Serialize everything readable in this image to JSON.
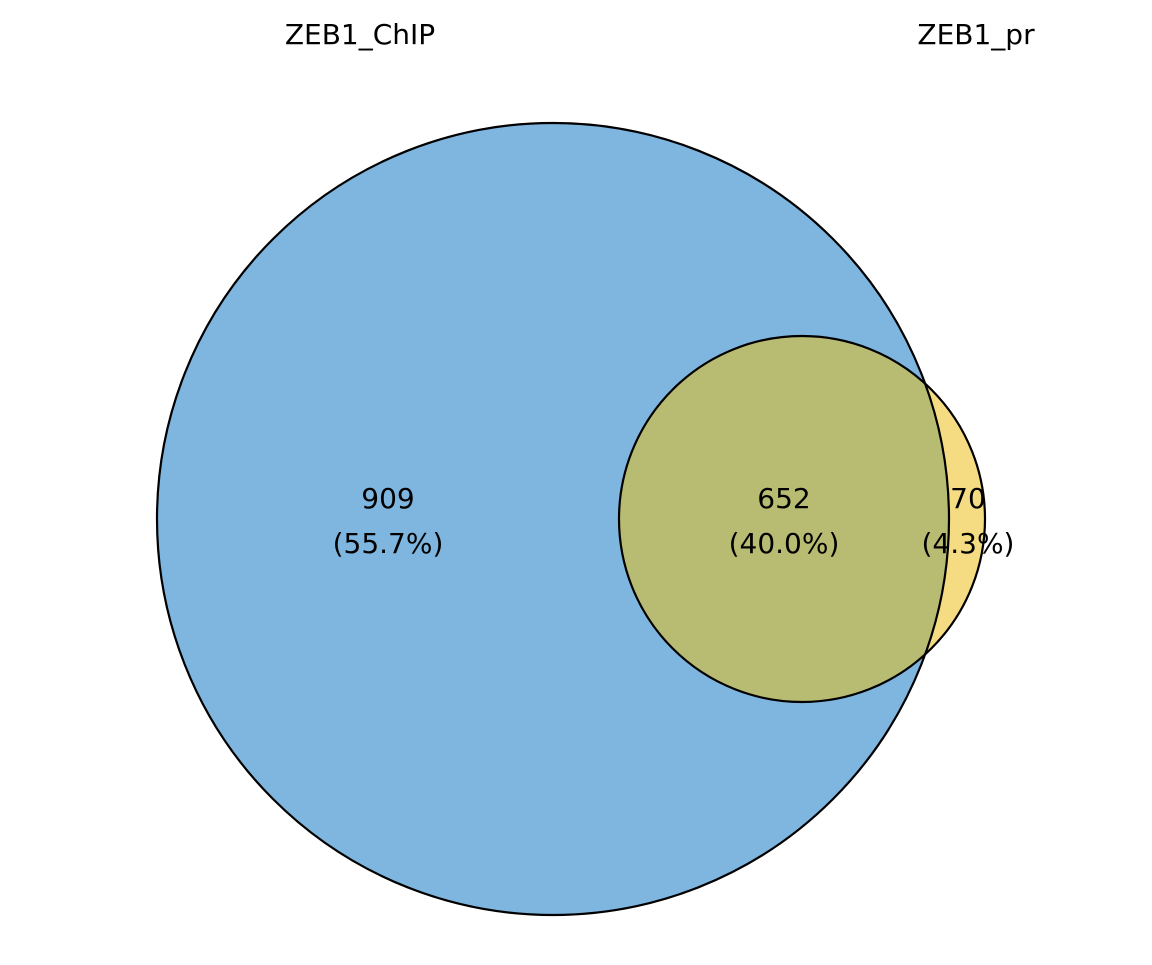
{
  "sets": [
    {
      "key": "chip",
      "label": "ZEB1_ChIP",
      "color": "#7fb6e0"
    },
    {
      "key": "pr",
      "label": "ZEB1_pr",
      "color": "#f5dc82"
    }
  ],
  "regions": {
    "chip_only": {
      "count": "909",
      "percent": "(55.7%)"
    },
    "overlap": {
      "count": "652",
      "percent": "(40.0%)",
      "color": "#b8bc72"
    },
    "pr_only": {
      "count": "70",
      "percent": "(4.3%)"
    }
  },
  "outline_color": "#000000"
}
